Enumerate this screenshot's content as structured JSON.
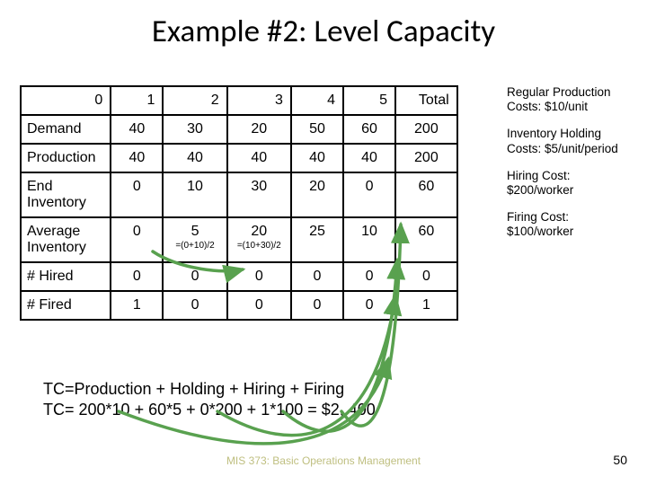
{
  "title": "Example #2: Level Capacity",
  "table": {
    "col_headers": [
      "0",
      "1",
      "2",
      "3",
      "4",
      "5",
      "Total"
    ],
    "rows": [
      {
        "label": "Demand",
        "cells": [
          "40",
          "30",
          "20",
          "50",
          "60",
          "200"
        ]
      },
      {
        "label": "Production",
        "cells": [
          "40",
          "40",
          "40",
          "40",
          "40",
          "200"
        ]
      },
      {
        "label": "End\nInventory",
        "cells": [
          "0",
          "10",
          "30",
          "20",
          "0",
          "60"
        ]
      },
      {
        "label": "Average\nInventory",
        "cells": [
          "0",
          "5",
          "20",
          "25",
          "10",
          "60"
        ],
        "formulas": {
          "2": "=(0+10)/2",
          "3": "=(10+30)/2"
        }
      },
      {
        "label": "# Hired",
        "cells": [
          "0",
          "0",
          "0",
          "0",
          "0",
          "0"
        ]
      },
      {
        "label": "# Fired",
        "cells": [
          "1",
          "0",
          "0",
          "0",
          "0",
          "1"
        ]
      }
    ],
    "col_widths_pct": [
      19,
      11,
      13.5,
      13.5,
      11,
      11,
      13,
      8
    ]
  },
  "notes": [
    "Regular Production Costs: $10/unit",
    "Inventory Holding Costs: $5/unit/period",
    "Hiring Cost: $200/worker",
    "Firing Cost: $100/worker"
  ],
  "tc": {
    "line1": "TC=Production + Holding +  Hiring +  Firing",
    "line2": "TC=   200*10    +    60*5  + 0*200 + 1*100 = $2, 400"
  },
  "footer": "MIS 373: Basic Operations Management",
  "page_number": "50",
  "arrow_color": "#59a14f",
  "ui_colors": {
    "bg": "#ffffff",
    "text": "#000000",
    "footer": "#bfbf80"
  }
}
